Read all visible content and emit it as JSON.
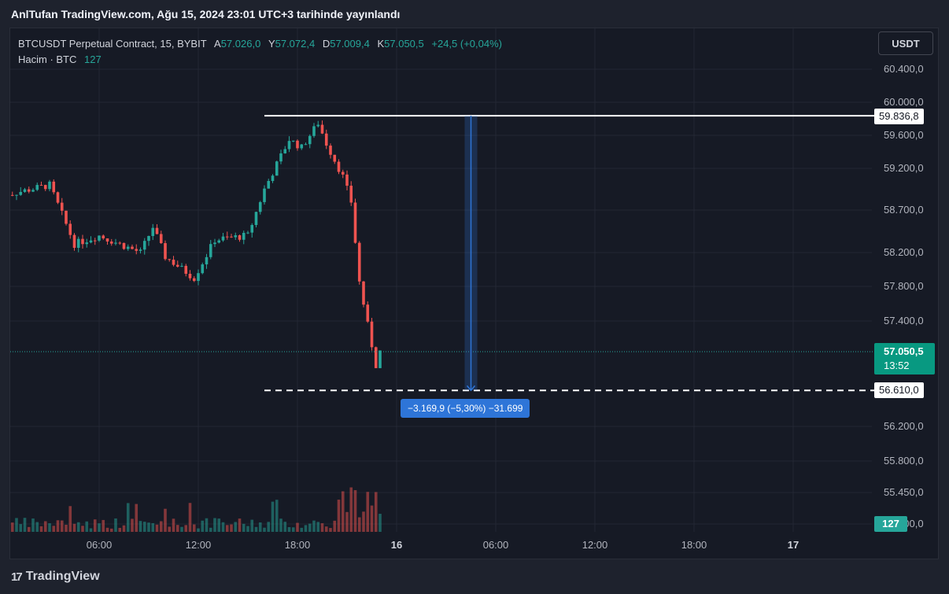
{
  "header": {
    "published": "AnlTufan TradingView.com, Ağu 15, 2024 23:01 UTC+3 tarihinde yayınlandı"
  },
  "legend": {
    "symbol": "BTCUSDT Perpetual Contract, 15, BYBIT",
    "open_label": "A",
    "open": "57.026,0",
    "high_label": "Y",
    "high": "57.072,4",
    "low_label": "D",
    "low": "57.009,4",
    "close_label": "K",
    "close": "57.050,5",
    "change": "+24,5 (+0,04%)",
    "volume_label": "Hacim · BTC",
    "volume": "127"
  },
  "currency_button": "USDT",
  "price_axis": [
    "60.400,0",
    "60.000,0",
    "59.600,0",
    "59.200,0",
    "58.700,0",
    "58.200,0",
    "57.800,0",
    "57.400,0",
    "56.200,0",
    "55.800,0",
    "55.450,0",
    "55.000,0"
  ],
  "time_axis": [
    {
      "label": "06:00",
      "bold": false
    },
    {
      "label": "12:00",
      "bold": false
    },
    {
      "label": "18:00",
      "bold": false
    },
    {
      "label": "16",
      "bold": true
    },
    {
      "label": "06:00",
      "bold": false
    },
    {
      "label": "12:00",
      "bold": false
    },
    {
      "label": "18:00",
      "bold": false
    },
    {
      "label": "17",
      "bold": true
    }
  ],
  "markers": {
    "high_line_value": "59.836,8",
    "low_line_value": "56.610,0",
    "last_price": "57.050,5",
    "countdown": "13:52",
    "volume_tag": "127"
  },
  "measure": {
    "label": "−3.169,9 (−5,30%) −31.699"
  },
  "footer": {
    "brand": "TradingView",
    "logo_glyph": "17"
  },
  "colors": {
    "up": "#26a69a",
    "down": "#ef5350",
    "background": "#161a25",
    "measure": "#2e75d8"
  },
  "chart_data": {
    "type": "candlestick",
    "symbol": "BTCUSDT Perpetual Contract",
    "interval": "15",
    "exchange": "BYBIT",
    "ohlc_anchors": [
      {
        "time": "00:45",
        "open": 58950,
        "close": 58900
      },
      {
        "time": "03:00",
        "open": 58850,
        "close": 59000
      },
      {
        "time": "04:30",
        "open": 58750,
        "close": 58300
      },
      {
        "time": "06:00",
        "open": 58250,
        "close": 58400
      },
      {
        "time": "08:30",
        "open": 58400,
        "close": 58200
      },
      {
        "time": "09:15",
        "open": 58300,
        "close": 58500
      },
      {
        "time": "10:00",
        "open": 58400,
        "close": 58150
      },
      {
        "time": "11:45",
        "open": 57800,
        "close": 57900
      },
      {
        "time": "13:00",
        "open": 58100,
        "close": 58350
      },
      {
        "time": "15:00",
        "open": 58450,
        "close": 58400
      },
      {
        "time": "16:00",
        "open": 58750,
        "close": 58950
      },
      {
        "time": "17:30",
        "open": 59250,
        "close": 59550
      },
      {
        "time": "18:15",
        "open": 59500,
        "close": 59450
      },
      {
        "time": "19:15",
        "open": 59650,
        "close": 59750
      },
      {
        "time": "19:45",
        "open": 59700,
        "close": 59500
      },
      {
        "time": "20:45",
        "open": 59450,
        "close": 59100
      },
      {
        "time": "21:15",
        "open": 59000,
        "close": 58800
      },
      {
        "time": "21:45",
        "open": 58000,
        "close": 57850
      },
      {
        "time": "22:15",
        "open": 57900,
        "close": 57350
      },
      {
        "time": "22:45",
        "open": 57100,
        "close": 56900
      },
      {
        "time": "23:00",
        "open": 57026.0,
        "high": 57072.4,
        "low": 57009.4,
        "close": 57050.5
      }
    ],
    "last_price": 57050.5,
    "range_high": 59836.8,
    "range_low": 56610.0,
    "volume_unit": "BTC",
    "last_volume": 127,
    "ylim": [
      55000,
      60400
    ]
  }
}
